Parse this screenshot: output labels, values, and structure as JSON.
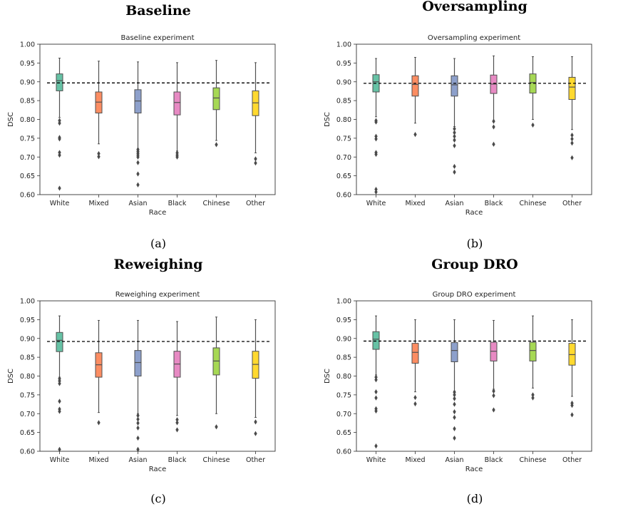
{
  "panels": [
    {
      "heading": "Baseline",
      "caption": "(a)"
    },
    {
      "heading": "Oversampling",
      "caption": "(b)"
    },
    {
      "heading": "Reweighing",
      "caption": "(c)"
    },
    {
      "heading": "Group DRO",
      "caption": "(d)"
    }
  ],
  "colors": {
    "White": "#66c2a5",
    "Mixed": "#fc8d62",
    "Asian": "#8da0cb",
    "Black": "#e78ac3",
    "Chinese": "#a6d854",
    "Other": "#ffd92f",
    "whisker": "#505050",
    "reference_line": "#000000"
  },
  "chart_data": [
    {
      "type": "box",
      "title": "Baseline experiment",
      "xlabel": "Race",
      "ylabel": "DSC",
      "categories": [
        "White",
        "Mixed",
        "Asian",
        "Black",
        "Chinese",
        "Other"
      ],
      "ylim": [
        0.6,
        1.0
      ],
      "yticks": [
        0.6,
        0.65,
        0.7,
        0.75,
        0.8,
        0.85,
        0.9,
        0.95,
        1.0
      ],
      "yticklabels": [
        "0.60",
        "0.65",
        "0.70",
        "0.75",
        "0.80",
        "0.85",
        "0.90",
        "0.95",
        "1.00"
      ],
      "reference_line": 0.897,
      "boxes": [
        {
          "whislo": 0.805,
          "q1": 0.876,
          "med": 0.903,
          "q3": 0.921,
          "whishi": 0.963,
          "fliers": [
            0.617,
            0.705,
            0.712,
            0.748,
            0.752,
            0.79,
            0.797
          ]
        },
        {
          "whislo": 0.735,
          "q1": 0.817,
          "med": 0.846,
          "q3": 0.873,
          "whishi": 0.955,
          "fliers": [
            0.701,
            0.709
          ]
        },
        {
          "whislo": 0.722,
          "q1": 0.817,
          "med": 0.849,
          "q3": 0.879,
          "whishi": 0.953,
          "fliers": [
            0.626,
            0.655,
            0.685,
            0.7,
            0.705,
            0.71,
            0.715,
            0.72
          ]
        },
        {
          "whislo": 0.716,
          "q1": 0.812,
          "med": 0.845,
          "q3": 0.873,
          "whishi": 0.951,
          "fliers": [
            0.7,
            0.705,
            0.711
          ]
        },
        {
          "whislo": 0.744,
          "q1": 0.826,
          "med": 0.857,
          "q3": 0.884,
          "whishi": 0.957,
          "fliers": [
            0.733
          ]
        },
        {
          "whislo": 0.711,
          "q1": 0.81,
          "med": 0.844,
          "q3": 0.876,
          "whishi": 0.951,
          "fliers": [
            0.684,
            0.695
          ]
        }
      ]
    },
    {
      "type": "box",
      "title": "Oversampling experiment",
      "xlabel": "Race",
      "ylabel": "DSC",
      "categories": [
        "White",
        "Mixed",
        "Asian",
        "Black",
        "Chinese",
        "Other"
      ],
      "ylim": [
        0.6,
        1.0
      ],
      "yticks": [
        0.6,
        0.65,
        0.7,
        0.75,
        0.8,
        0.85,
        0.9,
        0.95,
        1.0
      ],
      "yticklabels": [
        "0.60",
        "0.65",
        "0.70",
        "0.75",
        "0.80",
        "0.85",
        "0.90",
        "0.95",
        "1.00"
      ],
      "reference_line": 0.896,
      "boxes": [
        {
          "whislo": 0.807,
          "q1": 0.873,
          "med": 0.9,
          "q3": 0.919,
          "whishi": 0.962,
          "fliers": [
            0.607,
            0.614,
            0.707,
            0.712,
            0.748,
            0.755,
            0.793,
            0.797
          ]
        },
        {
          "whislo": 0.79,
          "q1": 0.862,
          "med": 0.893,
          "q3": 0.916,
          "whishi": 0.965,
          "fliers": [
            0.76
          ]
        },
        {
          "whislo": 0.781,
          "q1": 0.862,
          "med": 0.892,
          "q3": 0.916,
          "whishi": 0.962,
          "fliers": [
            0.66,
            0.675,
            0.73,
            0.745,
            0.755,
            0.765,
            0.775
          ]
        },
        {
          "whislo": 0.797,
          "q1": 0.869,
          "med": 0.894,
          "q3": 0.918,
          "whishi": 0.969,
          "fliers": [
            0.734,
            0.78,
            0.795
          ]
        },
        {
          "whislo": 0.8,
          "q1": 0.87,
          "med": 0.898,
          "q3": 0.921,
          "whishi": 0.967,
          "fliers": [
            0.785
          ]
        },
        {
          "whislo": 0.773,
          "q1": 0.853,
          "med": 0.886,
          "q3": 0.912,
          "whishi": 0.967,
          "fliers": [
            0.698,
            0.737,
            0.748,
            0.758
          ]
        }
      ]
    },
    {
      "type": "box",
      "title": "Reweighing experiment",
      "xlabel": "Race",
      "ylabel": "DSC",
      "categories": [
        "White",
        "Mixed",
        "Asian",
        "Black",
        "Chinese",
        "Other"
      ],
      "ylim": [
        0.6,
        1.0
      ],
      "yticks": [
        0.6,
        0.65,
        0.7,
        0.75,
        0.8,
        0.85,
        0.9,
        0.95,
        1.0
      ],
      "yticklabels": [
        "0.60",
        "0.65",
        "0.70",
        "0.75",
        "0.80",
        "0.85",
        "0.90",
        "0.95",
        "1.00"
      ],
      "reference_line": 0.892,
      "boxes": [
        {
          "whislo": 0.797,
          "q1": 0.865,
          "med": 0.895,
          "q3": 0.916,
          "whishi": 0.96,
          "fliers": [
            0.605,
            0.706,
            0.712,
            0.733,
            0.78,
            0.787,
            0.793
          ]
        },
        {
          "whislo": 0.703,
          "q1": 0.797,
          "med": 0.83,
          "q3": 0.862,
          "whishi": 0.948,
          "fliers": [
            0.676
          ]
        },
        {
          "whislo": 0.7,
          "q1": 0.8,
          "med": 0.836,
          "q3": 0.868,
          "whishi": 0.948,
          "fliers": [
            0.605,
            0.635,
            0.662,
            0.675,
            0.685,
            0.695
          ]
        },
        {
          "whislo": 0.695,
          "q1": 0.797,
          "med": 0.832,
          "q3": 0.866,
          "whishi": 0.945,
          "fliers": [
            0.657,
            0.676,
            0.684
          ]
        },
        {
          "whislo": 0.7,
          "q1": 0.803,
          "med": 0.84,
          "q3": 0.875,
          "whishi": 0.957,
          "fliers": [
            0.665
          ]
        },
        {
          "whislo": 0.69,
          "q1": 0.794,
          "med": 0.831,
          "q3": 0.866,
          "whishi": 0.95,
          "fliers": [
            0.647,
            0.678
          ]
        }
      ]
    },
    {
      "type": "box",
      "title": "Group DRO experiment",
      "xlabel": "Race",
      "ylabel": "DSC",
      "categories": [
        "White",
        "Mixed",
        "Asian",
        "Black",
        "Chinese",
        "Other"
      ],
      "ylim": [
        0.6,
        1.0
      ],
      "yticks": [
        0.6,
        0.65,
        0.7,
        0.75,
        0.8,
        0.85,
        0.9,
        0.95,
        1.0
      ],
      "yticklabels": [
        "0.60",
        "0.65",
        "0.70",
        "0.75",
        "0.80",
        "0.85",
        "0.90",
        "0.95",
        "1.00"
      ],
      "reference_line": 0.893,
      "boxes": [
        {
          "whislo": 0.803,
          "q1": 0.871,
          "med": 0.898,
          "q3": 0.918,
          "whishi": 0.96,
          "fliers": [
            0.614,
            0.707,
            0.713,
            0.742,
            0.758,
            0.79,
            0.797
          ]
        },
        {
          "whislo": 0.758,
          "q1": 0.834,
          "med": 0.863,
          "q3": 0.887,
          "whishi": 0.95,
          "fliers": [
            0.726,
            0.743
          ]
        },
        {
          "whislo": 0.76,
          "q1": 0.838,
          "med": 0.868,
          "q3": 0.889,
          "whishi": 0.95,
          "fliers": [
            0.635,
            0.66,
            0.69,
            0.705,
            0.725,
            0.74,
            0.75,
            0.757
          ]
        },
        {
          "whislo": 0.765,
          "q1": 0.84,
          "med": 0.866,
          "q3": 0.89,
          "whishi": 0.948,
          "fliers": [
            0.71,
            0.748,
            0.76
          ]
        },
        {
          "whislo": 0.768,
          "q1": 0.84,
          "med": 0.868,
          "q3": 0.89,
          "whishi": 0.96,
          "fliers": [
            0.742,
            0.75
          ]
        },
        {
          "whislo": 0.746,
          "q1": 0.829,
          "med": 0.857,
          "q3": 0.887,
          "whishi": 0.95,
          "fliers": [
            0.697,
            0.722,
            0.728
          ]
        }
      ]
    }
  ]
}
